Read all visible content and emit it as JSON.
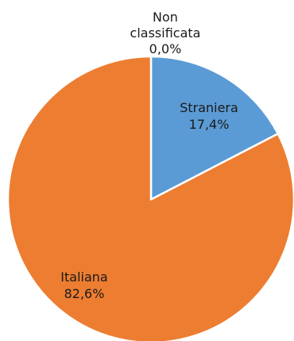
{
  "chart_data": {
    "type": "pie",
    "start_angle_deg": 0,
    "direction": "clockwise",
    "slices": [
      {
        "label_line1": "Non",
        "label_line2": "classificata",
        "label_line3": "0,0%",
        "value": 0.0,
        "color": "#A5A5A5"
      },
      {
        "label_line1": "Straniera",
        "label_line2": "17,4%",
        "value": 17.4,
        "color": "#5B9BD5"
      },
      {
        "label_line1": "Italiana",
        "label_line2": "82,6%",
        "value": 82.6,
        "color": "#ED7D31"
      }
    ]
  }
}
